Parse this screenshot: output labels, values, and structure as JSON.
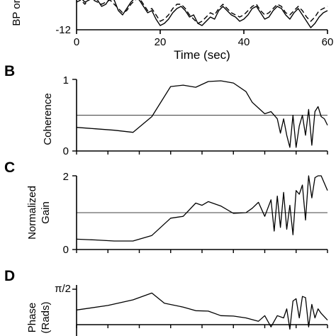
{
  "chart_data": [
    {
      "panel_letter": "",
      "type": "line",
      "ylabel": "BP or",
      "xlabel": "Time (sec)",
      "xlim": [
        0,
        60
      ],
      "ylim": [
        -12,
        6
      ],
      "x_ticks": [
        0,
        20,
        40,
        60
      ],
      "y_tick_labels": [
        {
          "value": -12,
          "label": "-12"
        }
      ],
      "series": [
        {
          "style": "solid",
          "x": [
            0,
            1,
            2,
            3,
            4,
            5,
            6,
            7,
            8,
            9,
            10,
            11,
            12,
            13,
            14,
            15,
            16,
            17,
            18,
            19,
            20,
            21,
            22,
            23,
            24,
            25,
            26,
            27,
            28,
            29,
            30,
            31,
            32,
            33,
            34,
            35,
            36,
            37,
            38,
            39,
            40,
            41,
            42,
            43,
            44,
            45,
            46,
            47,
            48,
            49,
            50,
            51,
            52,
            53,
            54,
            55,
            56,
            57,
            58,
            59,
            60
          ],
          "y": [
            2,
            3,
            1,
            2,
            3,
            2,
            -1,
            0,
            3,
            2,
            -3,
            -5,
            -2,
            1,
            3,
            2,
            -1,
            -4,
            -3,
            -7,
            -10,
            -9,
            -7,
            -4,
            -2,
            -1,
            -3,
            -6,
            -5,
            -9,
            -10,
            -8,
            -6,
            -7,
            -3,
            -1,
            -3,
            -5,
            -6,
            -8,
            -7,
            -5,
            -2,
            -1,
            -4,
            -7,
            -6,
            -3,
            -1,
            -2,
            -5,
            -7,
            -4,
            -2,
            -5,
            -8,
            -11,
            -9,
            -6,
            -4,
            -3
          ]
        },
        {
          "style": "dashed",
          "x": [
            0,
            1,
            2,
            3,
            4,
            5,
            6,
            7,
            8,
            9,
            10,
            11,
            12,
            13,
            14,
            15,
            16,
            17,
            18,
            19,
            20,
            21,
            22,
            23,
            24,
            25,
            26,
            27,
            28,
            29,
            30,
            31,
            32,
            33,
            34,
            35,
            36,
            37,
            38,
            39,
            40,
            41,
            42,
            43,
            44,
            45,
            46,
            47,
            48,
            49,
            50,
            51,
            52,
            53,
            54,
            55,
            56,
            57,
            58,
            59,
            60
          ],
          "y": [
            1,
            2,
            0,
            3,
            2,
            1,
            0,
            1,
            2,
            0,
            -2,
            -4,
            -3,
            0,
            2,
            3,
            0,
            -3,
            -2,
            -5,
            -8,
            -7,
            -5,
            -2,
            0,
            0,
            -2,
            -5,
            -7,
            -9,
            -8,
            -6,
            -4,
            -5,
            -2,
            0,
            -2,
            -4,
            -5,
            -6,
            -5,
            -3,
            -1,
            0,
            -3,
            -5,
            -4,
            -2,
            0,
            -1,
            -4,
            -5,
            -3,
            -1,
            -3,
            -6,
            -8,
            -6,
            -3,
            -2,
            -1
          ]
        }
      ]
    },
    {
      "panel_letter": "B",
      "type": "line",
      "ylabel": "Coherence",
      "xlim": [
        0,
        0.4
      ],
      "ylim": [
        0,
        1
      ],
      "y_tick_labels": [
        {
          "value": 0,
          "label": "0"
        },
        {
          "value": 1,
          "label": "1"
        }
      ],
      "reference_line": 0.5,
      "series": [
        {
          "x": [
            0,
            0.03,
            0.06,
            0.09,
            0.12,
            0.15,
            0.17,
            0.19,
            0.21,
            0.23,
            0.25,
            0.27,
            0.28,
            0.29,
            0.3,
            0.31,
            0.32,
            0.325,
            0.33,
            0.335,
            0.34,
            0.345,
            0.35,
            0.355,
            0.36,
            0.365,
            0.37,
            0.375,
            0.38,
            0.385,
            0.39,
            0.395,
            0.4
          ],
          "y": [
            0.33,
            0.31,
            0.29,
            0.26,
            0.48,
            0.9,
            0.92,
            0.89,
            0.97,
            0.98,
            0.95,
            0.83,
            0.68,
            0.6,
            0.52,
            0.55,
            0.45,
            0.25,
            0.45,
            0.22,
            0.05,
            0.5,
            0.05,
            0.35,
            0.5,
            0.22,
            0.58,
            0.08,
            0.55,
            0.62,
            0.48,
            0.45,
            0.36
          ]
        }
      ]
    },
    {
      "panel_letter": "C",
      "type": "line",
      "ylabel": "Normalized Gain",
      "ylabel_lines": [
        "Normalized",
        "Gain"
      ],
      "xlim": [
        0,
        0.4
      ],
      "ylim": [
        0,
        2
      ],
      "y_tick_labels": [
        {
          "value": 0,
          "label": "0"
        },
        {
          "value": 2,
          "label": "2"
        }
      ],
      "reference_line": 1,
      "series": [
        {
          "x": [
            0,
            0.03,
            0.06,
            0.09,
            0.12,
            0.15,
            0.17,
            0.19,
            0.2,
            0.21,
            0.23,
            0.25,
            0.27,
            0.28,
            0.29,
            0.3,
            0.31,
            0.315,
            0.32,
            0.325,
            0.33,
            0.335,
            0.34,
            0.345,
            0.35,
            0.355,
            0.36,
            0.365,
            0.37,
            0.375,
            0.38,
            0.385,
            0.39,
            0.4
          ],
          "y": [
            0.28,
            0.26,
            0.23,
            0.23,
            0.38,
            0.85,
            0.9,
            1.26,
            1.2,
            1.3,
            1.18,
            0.98,
            1.0,
            1.12,
            1.28,
            0.9,
            1.35,
            0.5,
            1.45,
            0.6,
            1.55,
            0.55,
            1.2,
            0.4,
            1.6,
            1.5,
            1.75,
            0.8,
            2.0,
            1.4,
            1.95,
            2.0,
            2.0,
            1.6
          ]
        }
      ]
    },
    {
      "panel_letter": "D",
      "type": "line",
      "ylabel": "Phase (Rads)",
      "ylabel_lines": [
        "Phase",
        "(Rads)"
      ],
      "xlim": [
        0,
        0.4
      ],
      "ylim": [
        0,
        1.5708
      ],
      "y_tick_labels": [
        {
          "value": 1.5708,
          "label": "π/2"
        }
      ],
      "series": [
        {
          "x": [
            0,
            0.05,
            0.09,
            0.12,
            0.14,
            0.17,
            0.19,
            0.21,
            0.23,
            0.25,
            0.27,
            0.29,
            0.3,
            0.31,
            0.32,
            0.33,
            0.335,
            0.34,
            0.345,
            0.35,
            0.355,
            0.36,
            0.365,
            0.37,
            0.375,
            0.38,
            0.385,
            0.39,
            0.4
          ],
          "y": [
            0.65,
            0.85,
            1.1,
            1.4,
            0.95,
            0.78,
            0.62,
            0.6,
            0.4,
            0.38,
            0.3,
            0.15,
            0.4,
            -0.1,
            0.4,
            0.3,
            0.7,
            -0.2,
            1.05,
            1.15,
            0.3,
            1.25,
            1.2,
            -0.1,
            0.9,
            0.3,
            0.7,
            0.5,
            0.2
          ]
        }
      ]
    }
  ]
}
